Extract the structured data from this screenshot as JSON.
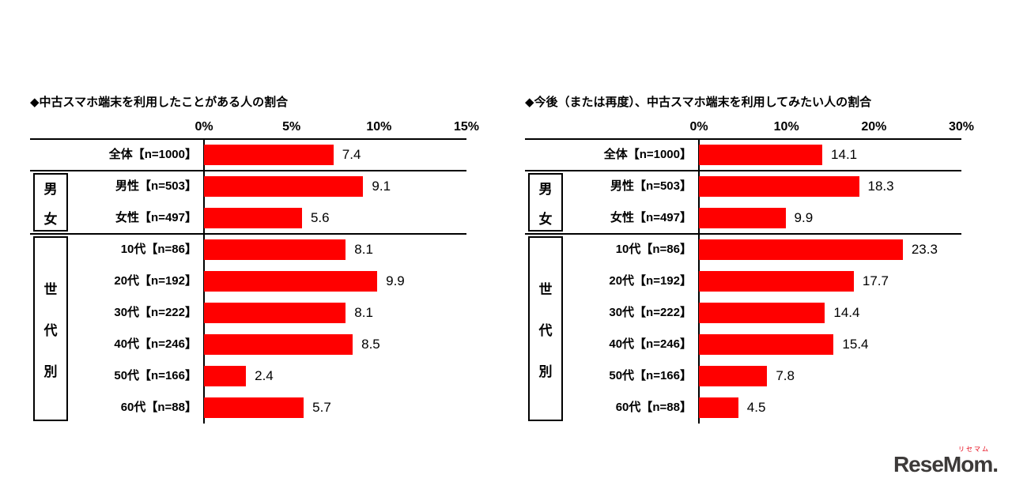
{
  "chart_data": [
    {
      "type": "bar",
      "orientation": "horizontal",
      "title": "◆中古スマホ端末を利用したことがある人の割合",
      "categories": [
        "全体【n=1000】",
        "男性【n=503】",
        "女性【n=497】",
        "10代【n=86】",
        "20代【n=192】",
        "30代【n=222】",
        "40代【n=246】",
        "50代【n=166】",
        "60代【n=88】"
      ],
      "values": [
        7.4,
        9.1,
        5.6,
        8.1,
        9.9,
        8.1,
        8.5,
        2.4,
        5.7
      ],
      "value_labels": [
        "7.4",
        "9.1",
        "5.6",
        "8.1",
        "9.9",
        "8.1",
        "8.5",
        "2.4",
        "5.7"
      ],
      "xlim": [
        0,
        15
      ],
      "ticks": [
        0,
        5,
        10,
        15
      ],
      "tick_labels": [
        "0%",
        "5%",
        "10%",
        "15%"
      ],
      "bar_color": "#ff0000",
      "grid": false,
      "legend": false,
      "row_groups": [
        {
          "label": "男女",
          "chars": [
            "男",
            "女"
          ],
          "start": 1,
          "end": 2
        },
        {
          "label": "世代別",
          "chars": [
            "世",
            "代",
            "別"
          ],
          "start": 3,
          "end": 8
        }
      ],
      "separators_after": [
        -1,
        0,
        2
      ]
    },
    {
      "type": "bar",
      "orientation": "horizontal",
      "title": "◆今後（または再度）、中古スマホ端末を利用してみたい人の割合",
      "categories": [
        "全体【n=1000】",
        "男性【n=503】",
        "女性【n=497】",
        "10代【n=86】",
        "20代【n=192】",
        "30代【n=222】",
        "40代【n=246】",
        "50代【n=166】",
        "60代【n=88】"
      ],
      "values": [
        14.1,
        18.3,
        9.9,
        23.3,
        17.7,
        14.4,
        15.4,
        7.8,
        4.5
      ],
      "value_labels": [
        "14.1",
        "18.3",
        "9.9",
        "23.3",
        "17.7",
        "14.4",
        "15.4",
        "7.8",
        "4.5"
      ],
      "xlim": [
        0,
        30
      ],
      "ticks": [
        0,
        10,
        20,
        30
      ],
      "tick_labels": [
        "0%",
        "10%",
        "20%",
        "30%"
      ],
      "bar_color": "#ff0000",
      "grid": false,
      "legend": false,
      "row_groups": [
        {
          "label": "男女",
          "chars": [
            "男",
            "女"
          ],
          "start": 1,
          "end": 2
        },
        {
          "label": "世代別",
          "chars": [
            "世",
            "代",
            "別"
          ],
          "start": 3,
          "end": 8
        }
      ],
      "separators_after": [
        -1,
        0,
        2
      ]
    }
  ],
  "logo": {
    "kana": "リセマム",
    "text": "ReseMom",
    "dot": "."
  }
}
